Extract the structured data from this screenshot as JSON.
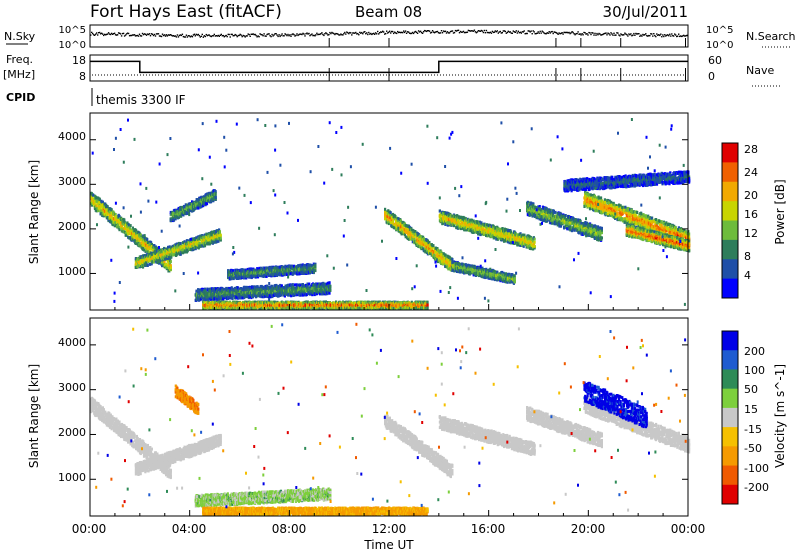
{
  "header": {
    "title": "Fort Hays East (fitACF)",
    "beam": "Beam 08",
    "date": "30/Jul/2011"
  },
  "sky_panel": {
    "left_label": "N.Sky",
    "right_label": "N.Search",
    "tick_top": "10^5",
    "tick_bottom": "10^0",
    "right_tick_top": "10^5",
    "right_tick_bottom": "10^0"
  },
  "freq_panel": {
    "left_label": "Freq.",
    "left_unit": "[MHz]",
    "right_label": "Nave",
    "left_ticks": [
      "18",
      "8"
    ],
    "right_ticks": [
      "60",
      "0"
    ]
  },
  "cpid_panel": {
    "label": "CPID",
    "mode": "themis 3300 IF"
  },
  "x_axis": {
    "label": "Time UT",
    "ticks": [
      "00:00",
      "04:00",
      "08:00",
      "12:00",
      "16:00",
      "20:00",
      "00:00"
    ]
  },
  "power_panel": {
    "ylabel": "Slant Range [km]",
    "yticks": [
      "4000",
      "3000",
      "2000",
      "1000"
    ],
    "colorbar_label": "Power [dB]",
    "colorbar_ticks": [
      "28",
      "24",
      "20",
      "16",
      "12",
      "8",
      "4"
    ],
    "colors": [
      "#0000ff",
      "#1f4fa8",
      "#2e7d5b",
      "#6dbb3c",
      "#c8d400",
      "#f2a900",
      "#f06000",
      "#e00000"
    ]
  },
  "velocity_panel": {
    "ylabel": "Slant Range [km]",
    "yticks": [
      "4000",
      "3000",
      "2000",
      "1000"
    ],
    "colorbar_label": "Velocity [m s^-1]",
    "colorbar_ticks": [
      "200",
      "100",
      "50",
      "15",
      "-15",
      "-50",
      "-100",
      "-200"
    ],
    "colors": [
      "#e00000",
      "#f05a00",
      "#f59a00",
      "#f5c000",
      "#c8c8c8",
      "#7dcf3c",
      "#2e8b57",
      "#1e5bd0",
      "#0000e6"
    ]
  },
  "chart_data": [
    {
      "type": "heatmap",
      "title": "Power",
      "xlabel": "Time UT",
      "ylabel": "Slant Range [km]",
      "xlim": [
        0,
        24
      ],
      "ylim": [
        180,
        4600
      ],
      "colorbar": {
        "label": "Power [dB]",
        "range": [
          0,
          32
        ]
      },
      "echo_bands": [
        {
          "t0": 0.0,
          "t1": 3.2,
          "r0": 2700,
          "r1": 1200,
          "width": 320,
          "peak_db": 22
        },
        {
          "t0": 1.8,
          "t1": 5.2,
          "r0": 1250,
          "r1": 1900,
          "width": 260,
          "peak_db": 20
        },
        {
          "t0": 3.2,
          "t1": 5.0,
          "r0": 2300,
          "r1": 2800,
          "width": 220,
          "peak_db": 14
        },
        {
          "t0": 4.2,
          "t1": 9.6,
          "r0": 550,
          "r1": 700,
          "width": 250,
          "peak_db": 12
        },
        {
          "t0": 5.5,
          "t1": 9.0,
          "r0": 1000,
          "r1": 1150,
          "width": 200,
          "peak_db": 12
        },
        {
          "t0": 4.5,
          "t1": 13.5,
          "r0": 320,
          "r1": 320,
          "width": 150,
          "peak_db": 28
        },
        {
          "t0": 11.8,
          "t1": 14.5,
          "r0": 2350,
          "r1": 1200,
          "width": 300,
          "peak_db": 24
        },
        {
          "t0": 14.0,
          "t1": 17.8,
          "r0": 2300,
          "r1": 1700,
          "width": 280,
          "peak_db": 22
        },
        {
          "t0": 14.5,
          "t1": 17.0,
          "r0": 1200,
          "r1": 900,
          "width": 200,
          "peak_db": 16
        },
        {
          "t0": 17.5,
          "t1": 20.5,
          "r0": 2500,
          "r1": 1900,
          "width": 300,
          "peak_db": 16
        },
        {
          "t0": 19.8,
          "t1": 24.0,
          "r0": 2700,
          "r1": 1800,
          "width": 350,
          "peak_db": 26
        },
        {
          "t0": 21.5,
          "t1": 24.0,
          "r0": 2000,
          "r1": 1650,
          "width": 250,
          "peak_db": 28
        },
        {
          "t0": 19.0,
          "t1": 24.0,
          "r0": 3000,
          "r1": 3200,
          "width": 250,
          "peak_db": 8
        }
      ]
    },
    {
      "type": "heatmap",
      "title": "Velocity",
      "xlabel": "Time UT",
      "ylabel": "Slant Range [km]",
      "xlim": [
        0,
        24
      ],
      "ylim": [
        180,
        4600
      ],
      "colorbar": {
        "label": "Velocity [m s^-1]",
        "range": [
          -200,
          200
        ]
      },
      "echo_bands": [
        {
          "t0": 0.0,
          "t1": 3.2,
          "r0": 2700,
          "r1": 1200,
          "width": 320,
          "velocity": 0
        },
        {
          "t0": 1.8,
          "t1": 5.2,
          "r0": 1250,
          "r1": 1900,
          "width": 260,
          "velocity": 0
        },
        {
          "t0": 3.4,
          "t1": 4.3,
          "r0": 3000,
          "r1": 2600,
          "width": 250,
          "velocity": -80
        },
        {
          "t0": 4.2,
          "t1": 9.6,
          "r0": 550,
          "r1": 700,
          "width": 250,
          "velocity": 25
        },
        {
          "t0": 4.5,
          "t1": 13.5,
          "r0": 320,
          "r1": 320,
          "width": 150,
          "velocity": -60
        },
        {
          "t0": 11.8,
          "t1": 14.5,
          "r0": 2350,
          "r1": 1200,
          "width": 300,
          "velocity": 0
        },
        {
          "t0": 14.0,
          "t1": 17.8,
          "r0": 2300,
          "r1": 1700,
          "width": 280,
          "velocity": 0
        },
        {
          "t0": 17.5,
          "t1": 20.5,
          "r0": 2500,
          "r1": 1900,
          "width": 300,
          "velocity": 0
        },
        {
          "t0": 19.8,
          "t1": 24.0,
          "r0": 2700,
          "r1": 1800,
          "width": 350,
          "velocity": 0
        },
        {
          "t0": 19.8,
          "t1": 22.3,
          "r0": 3000,
          "r1": 2400,
          "width": 450,
          "velocity": 220
        }
      ]
    },
    {
      "type": "line",
      "title": "Frequency",
      "ylabel": "Freq. [MHz]",
      "ylim": [
        8,
        18
      ],
      "x": [
        0,
        2.0,
        2.0,
        14.0,
        14.0,
        24
      ],
      "values": [
        16,
        16,
        11,
        11,
        16,
        16
      ]
    }
  ]
}
